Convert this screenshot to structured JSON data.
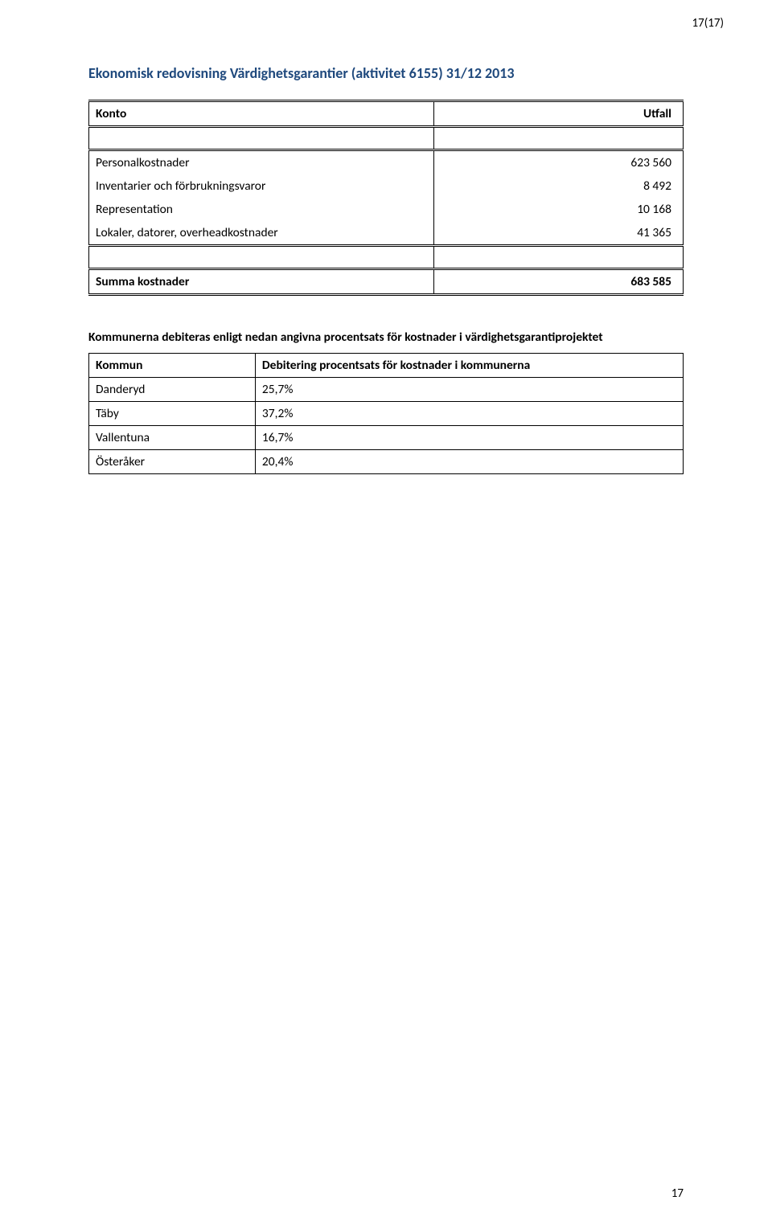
{
  "header_page_indicator": "17(17)",
  "footer_page_number": "17",
  "title": "Ekonomisk redovisning Värdighetsgarantier (aktivitet 6155) 31/12 2013",
  "cost_table": {
    "columns": [
      "Konto",
      "Utfall"
    ],
    "rows": [
      {
        "label": "Personalkostnader",
        "value": "623 560"
      },
      {
        "label": "Inventarier och förbrukningsvaror",
        "value": "8 492"
      },
      {
        "label": "Representation",
        "value": "10 168"
      },
      {
        "label": "Lokaler, datorer, overheadkostnader",
        "value": "41 365"
      }
    ],
    "total": {
      "label": "Summa kostnader",
      "value": "683 585"
    }
  },
  "debit_section": {
    "intro": "Kommunerna debiteras enligt nedan angivna procentsats för kostnader i värdighetsgarantiprojektet",
    "columns": [
      "Kommun",
      "Debitering procentsats för kostnader i kommunerna"
    ],
    "rows": [
      {
        "kommun": "Danderyd",
        "pct": "25,7%"
      },
      {
        "kommun": "Täby",
        "pct": "37,2%"
      },
      {
        "kommun": "Vallentuna",
        "pct": "16,7%"
      },
      {
        "kommun": "Österåker",
        "pct": "20,4%"
      }
    ]
  }
}
